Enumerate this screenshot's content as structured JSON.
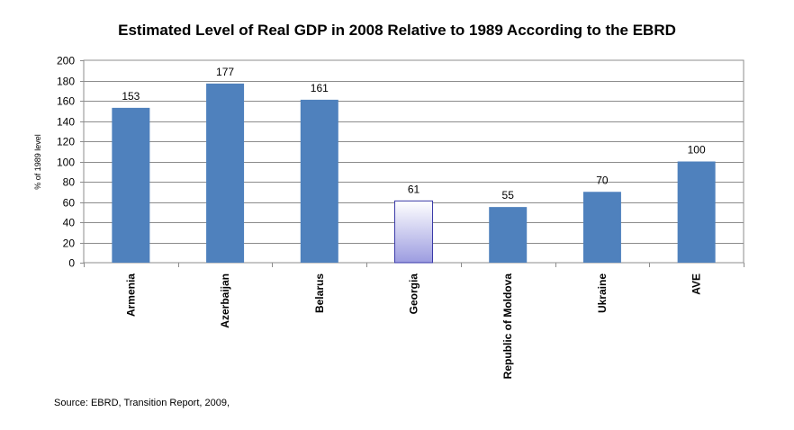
{
  "chart_data": {
    "type": "bar",
    "title": "Estimated Level of Real GDP in 2008 Relative to 1989 According to the EBRD",
    "ylabel": "% of 1989 level",
    "xlabel": "",
    "categories": [
      "Armenia",
      "Azerbaijan",
      "Belarus",
      "Georgia",
      "Republic of Moldova",
      "Ukraine",
      "AVE"
    ],
    "values": [
      153,
      177,
      161,
      61,
      55,
      70,
      100
    ],
    "data_labels": [
      "153",
      "177",
      "161",
      "61",
      "55",
      "70",
      "100"
    ],
    "ylim": [
      0,
      200
    ],
    "yticks": [
      "0",
      "20",
      "40",
      "60",
      "80",
      "100",
      "120",
      "140",
      "160",
      "180",
      "200"
    ],
    "grid": true,
    "legend": "none",
    "bar_color": "#4F81BD",
    "highlight_category": "Georgia",
    "highlight_colors": [
      "#ffffff",
      "#9c9ce0"
    ],
    "highlight_border": "#3a3aa8"
  },
  "source": "Source: EBRD,  Transition Report, 2009,"
}
